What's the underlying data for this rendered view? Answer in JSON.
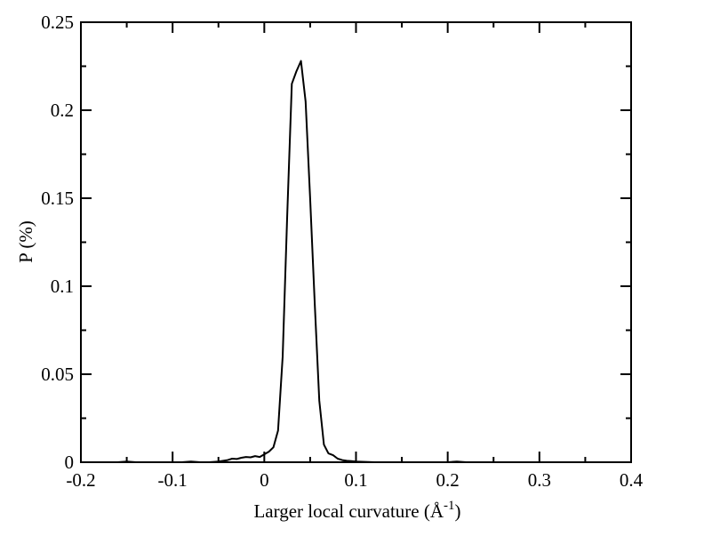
{
  "chart_data": {
    "type": "line",
    "title": "",
    "xlabel": "Larger local curvature (Å",
    "xlabel_superscript": "-1",
    "xlabel_suffix": ")",
    "ylabel": "P (%)",
    "xlim": [
      -0.2,
      0.4
    ],
    "ylim": [
      0,
      0.25
    ],
    "x_ticks": [
      "-0.2",
      "-0.1",
      "0",
      "0.1",
      "0.2",
      "0.3",
      "0.4"
    ],
    "y_ticks": [
      "0",
      "0.05",
      "0.1",
      "0.15",
      "0.2",
      "0.25"
    ],
    "grid": false,
    "line_color": "#000000",
    "series": [
      {
        "x": [
          -0.2,
          -0.16,
          -0.15,
          -0.14,
          -0.1,
          -0.09,
          -0.08,
          -0.07,
          -0.06,
          -0.05,
          -0.04,
          -0.035,
          -0.03,
          -0.025,
          -0.02,
          -0.015,
          -0.01,
          -0.005,
          0.0,
          0.005,
          0.01,
          0.015,
          0.02,
          0.025,
          0.03,
          0.035,
          0.04,
          0.045,
          0.05,
          0.055,
          0.06,
          0.065,
          0.07,
          0.075,
          0.08,
          0.085,
          0.09,
          0.095,
          0.1,
          0.11,
          0.12,
          0.15,
          0.2,
          0.21,
          0.22,
          0.23,
          0.3,
          0.4
        ],
        "y": [
          0.0,
          0.0,
          0.0004,
          0.0,
          0.0,
          0.0,
          0.0004,
          0.0,
          0.0,
          0.0004,
          0.0012,
          0.002,
          0.0018,
          0.0025,
          0.003,
          0.0028,
          0.0035,
          0.003,
          0.0045,
          0.006,
          0.0085,
          0.018,
          0.06,
          0.14,
          0.215,
          0.222,
          0.228,
          0.205,
          0.15,
          0.09,
          0.035,
          0.01,
          0.005,
          0.004,
          0.002,
          0.0012,
          0.0008,
          0.0006,
          0.0004,
          0.0002,
          0.0,
          0.0,
          0.0,
          0.0004,
          0.0,
          0.0,
          0.0,
          0.0
        ]
      }
    ]
  }
}
